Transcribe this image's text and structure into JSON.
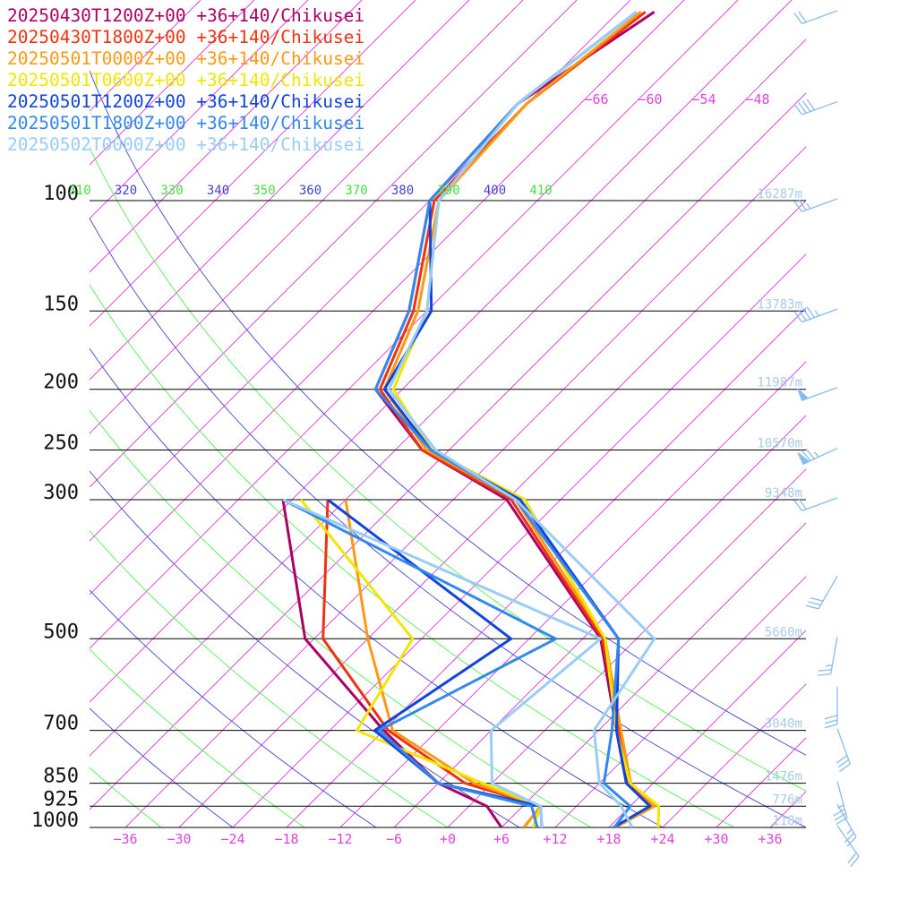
{
  "chart_data": {
    "type": "line",
    "title": "",
    "xlabel": "",
    "ylabel": "",
    "xlim": [
      -40,
      40
    ],
    "ylim": [
      1000,
      100
    ],
    "y_scale": "log",
    "grid": true,
    "legend_position": "top-left",
    "pressure_levels": [
      100,
      150,
      200,
      250,
      300,
      500,
      700,
      850,
      925,
      1000
    ],
    "height_labels": [
      {
        "p": 100,
        "text": "16287m"
      },
      {
        "p": 150,
        "text": "13783m"
      },
      {
        "p": 200,
        "text": "11987m"
      },
      {
        "p": 250,
        "text": "10570m"
      },
      {
        "p": 300,
        "text": "9348m"
      },
      {
        "p": 500,
        "text": "5660m"
      },
      {
        "p": 700,
        "text": "3040m"
      },
      {
        "p": 850,
        "text": "1476m"
      },
      {
        "p": 925,
        "text": "776m"
      },
      {
        "p": 1000,
        "text": "118m"
      }
    ],
    "x_tick_labels": [
      {
        "v": -36,
        "text": "−36"
      },
      {
        "v": -30,
        "text": "−30"
      },
      {
        "v": -24,
        "text": "−24"
      },
      {
        "v": -18,
        "text": "−18"
      },
      {
        "v": -12,
        "text": "−12"
      },
      {
        "v": -6,
        "text": "−6"
      },
      {
        "v": 0,
        "text": "+0"
      },
      {
        "v": 6,
        "text": "+6"
      },
      {
        "v": 12,
        "text": "+12"
      },
      {
        "v": 18,
        "text": "+18"
      },
      {
        "v": 24,
        "text": "+24"
      },
      {
        "v": 30,
        "text": "+30"
      },
      {
        "v": 36,
        "text": "+36"
      }
    ],
    "isotherm_top_labels": [
      "−66",
      "−60",
      "−54",
      "−48"
    ],
    "theta_e_labels": [
      {
        "text": "310",
        "color": "#44dd44"
      },
      {
        "text": "320",
        "color": "#4444cc"
      },
      {
        "text": "330",
        "color": "#44dd44"
      },
      {
        "text": "340",
        "color": "#4444cc"
      },
      {
        "text": "350",
        "color": "#44dd44"
      },
      {
        "text": "360",
        "color": "#4444cc"
      },
      {
        "text": "370",
        "color": "#44dd44"
      },
      {
        "text": "380",
        "color": "#4444cc"
      },
      {
        "text": "390",
        "color": "#44dd44"
      },
      {
        "text": "400",
        "color": "#4444cc"
      },
      {
        "text": "410",
        "color": "#44dd44"
      }
    ],
    "series": [
      {
        "name": "20250430T1200Z+00 +36+140/Chikusei",
        "color": "#aa0066",
        "temperature": [
          [
            1000,
            18.6
          ],
          [
            925,
            20.5
          ],
          [
            850,
            15.0
          ],
          [
            700,
            8.0
          ],
          [
            500,
            -4.0
          ],
          [
            300,
            -30.0
          ],
          [
            250,
            -45.0
          ],
          [
            200,
            -57.0
          ],
          [
            150,
            -62.0
          ],
          [
            100,
            -72.0
          ],
          [
            70,
            -73.0
          ],
          [
            50,
            -68.0
          ]
        ],
        "dewpoint": [
          [
            1000,
            6.0
          ],
          [
            925,
            2.0
          ],
          [
            850,
            -6.0
          ],
          [
            700,
            -18.0
          ],
          [
            500,
            -37.0
          ],
          [
            300,
            -55.0
          ]
        ]
      },
      {
        "name": "20250430T1800Z+00 +36+140/Chikusei",
        "color": "#ee3311",
        "temperature": [
          [
            1000,
            18.7
          ],
          [
            925,
            20.3
          ],
          [
            850,
            15.2
          ],
          [
            700,
            8.3
          ],
          [
            500,
            -3.8
          ],
          [
            300,
            -29.5
          ],
          [
            250,
            -45.0
          ],
          [
            200,
            -56.5
          ],
          [
            150,
            -61.5
          ],
          [
            100,
            -71.5
          ],
          [
            70,
            -72.0
          ],
          [
            50,
            -69.0
          ]
        ],
        "dewpoint": [
          [
            1000,
            8.5
          ],
          [
            925,
            8.0
          ],
          [
            850,
            -3.0
          ],
          [
            700,
            -17.5
          ],
          [
            500,
            -35.0
          ],
          [
            300,
            -50.0
          ]
        ]
      },
      {
        "name": "20250501T0000Z+00 +36+140/Chikusei",
        "color": "#ff9911",
        "temperature": [
          [
            1000,
            18.7
          ],
          [
            925,
            20.7
          ],
          [
            850,
            15.5
          ],
          [
            700,
            8.5
          ],
          [
            500,
            -3.5
          ],
          [
            300,
            -29.0
          ],
          [
            250,
            -44.5
          ],
          [
            200,
            -56.0
          ],
          [
            150,
            -61.0
          ],
          [
            100,
            -71.0
          ],
          [
            70,
            -72.0
          ],
          [
            50,
            -69.5
          ]
        ],
        "dewpoint": [
          [
            1000,
            8.5
          ],
          [
            925,
            8.0
          ],
          [
            850,
            -2.0
          ],
          [
            700,
            -17.0
          ],
          [
            500,
            -30.0
          ],
          [
            300,
            -48.0
          ]
        ]
      },
      {
        "name": "20250501T0600Z+00 +36+140/Chikusei",
        "color": "#f2e600",
        "temperature": [
          [
            1000,
            23.5
          ],
          [
            925,
            21.2
          ],
          [
            850,
            15.4
          ],
          [
            700,
            8.0
          ],
          [
            500,
            -3.5
          ],
          [
            300,
            -28.0
          ],
          [
            250,
            -44.0
          ],
          [
            200,
            -55.0
          ],
          [
            150,
            -60.0
          ],
          [
            100,
            -71.0
          ],
          [
            70,
            -73.0
          ],
          [
            50,
            -70.0
          ]
        ],
        "dewpoint": [
          [
            1000,
            9.5
          ],
          [
            925,
            8.0
          ],
          [
            850,
            -1.0
          ],
          [
            700,
            -21.0
          ],
          [
            500,
            -25.0
          ],
          [
            300,
            -53.0
          ]
        ]
      },
      {
        "name": "20250501T1200Z+00 +36+140/Chikusei",
        "color": "#1144dd",
        "temperature": [
          [
            1000,
            18.5
          ],
          [
            925,
            20.2
          ],
          [
            850,
            15.0
          ],
          [
            700,
            8.0
          ],
          [
            500,
            -2.0
          ],
          [
            300,
            -28.5
          ],
          [
            250,
            -44.0
          ],
          [
            200,
            -56.0
          ],
          [
            150,
            -59.5
          ],
          [
            100,
            -72.0
          ],
          [
            70,
            -73.0
          ],
          [
            50,
            -70.0
          ]
        ],
        "dewpoint": [
          [
            1000,
            10.5
          ],
          [
            925,
            8.0
          ],
          [
            850,
            -6.0
          ],
          [
            700,
            -19.0
          ],
          [
            500,
            -14.0
          ],
          [
            300,
            -50.0
          ]
        ]
      },
      {
        "name": "20250501T1800Z+00 +36+140/Chikusei",
        "color": "#3388ee",
        "temperature": [
          [
            1000,
            18.6
          ],
          [
            925,
            18.0
          ],
          [
            850,
            12.5
          ],
          [
            700,
            7.5
          ],
          [
            500,
            -2.0
          ],
          [
            300,
            -29.0
          ],
          [
            250,
            -44.0
          ],
          [
            200,
            -57.0
          ],
          [
            150,
            -62.0
          ],
          [
            100,
            -72.0
          ],
          [
            70,
            -73.0
          ],
          [
            50,
            -70.0
          ]
        ],
        "dewpoint": [
          [
            1000,
            10.0
          ],
          [
            925,
            7.0
          ],
          [
            850,
            -6.0
          ],
          [
            700,
            -18.5
          ],
          [
            500,
            -9.0
          ],
          [
            300,
            -55.0
          ]
        ]
      },
      {
        "name": "20250502T0000Z+00 +36+140/Chikusei",
        "color": "#99ccf6",
        "temperature": [
          [
            1000,
            20.6
          ],
          [
            925,
            17.0
          ],
          [
            850,
            12.0
          ],
          [
            700,
            5.5
          ],
          [
            500,
            2.0
          ],
          [
            300,
            -29.0
          ],
          [
            250,
            -43.5
          ],
          [
            200,
            -55.5
          ],
          [
            150,
            -60.0
          ],
          [
            100,
            -71.0
          ],
          [
            70,
            -73.0
          ],
          [
            50,
            -70.0
          ]
        ],
        "dewpoint": [
          [
            1000,
            10.5
          ],
          [
            925,
            8.0
          ],
          [
            850,
            0.0
          ],
          [
            700,
            -6.0
          ],
          [
            500,
            -4.0
          ],
          [
            300,
            -55.0
          ]
        ]
      }
    ],
    "wind_barbs": [
      {
        "p": 50,
        "dir": 250,
        "speed": 20
      },
      {
        "p": 70,
        "dir": 250,
        "speed": 40
      },
      {
        "p": 100,
        "dir": 250,
        "speed": 25
      },
      {
        "p": 150,
        "dir": 250,
        "speed": 45
      },
      {
        "p": 200,
        "dir": 250,
        "speed": 50
      },
      {
        "p": 250,
        "dir": 245,
        "speed": 75
      },
      {
        "p": 300,
        "dir": 250,
        "speed": 20
      },
      {
        "p": 400,
        "dir": 210,
        "speed": 30
      },
      {
        "p": 500,
        "dir": 190,
        "speed": 25
      },
      {
        "p": 600,
        "dir": 180,
        "speed": 30
      },
      {
        "p": 700,
        "dir": 160,
        "speed": 30
      },
      {
        "p": 850,
        "dir": 165,
        "speed": 35
      },
      {
        "p": 925,
        "dir": 150,
        "speed": 25
      },
      {
        "p": 1000,
        "dir": 145,
        "speed": 20
      }
    ]
  }
}
